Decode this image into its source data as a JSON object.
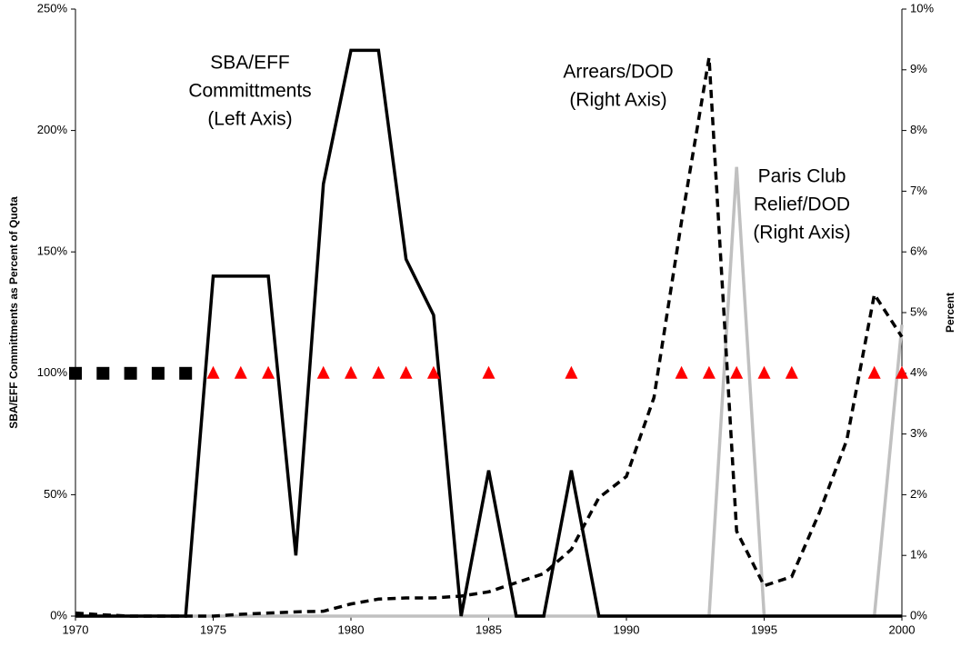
{
  "chart_data": {
    "type": "line",
    "y_label": "SBA/EFF Committments as Percent of Quota",
    "y2_label": "Percent",
    "annotations": [
      {
        "text": [
          "SBA/EFF",
          "Committments",
          "(Left Axis)"
        ]
      },
      {
        "text": [
          "Arrears/DOD",
          "(Right Axis)"
        ]
      },
      {
        "text": [
          "Paris Club",
          "Relief/DOD",
          "(Right Axis)"
        ]
      }
    ],
    "x": [
      1970,
      1971,
      1972,
      1973,
      1974,
      1975,
      1976,
      1977,
      1978,
      1979,
      1980,
      1981,
      1982,
      1983,
      1984,
      1985,
      1986,
      1987,
      1988,
      1989,
      1990,
      1991,
      1992,
      1993,
      1994,
      1995,
      1996,
      1997,
      1998,
      1999,
      2000
    ],
    "xlim": [
      1970,
      2000
    ],
    "xticks": [
      1970,
      1975,
      1980,
      1985,
      1990,
      1995,
      2000
    ],
    "ylim": [
      0,
      250
    ],
    "yticks": [
      {
        "value": 0,
        "label": "0%"
      },
      {
        "value": 50,
        "label": "50%"
      },
      {
        "value": 100,
        "label": "100%"
      },
      {
        "value": 150,
        "label": "150%"
      },
      {
        "value": 200,
        "label": "200%"
      },
      {
        "value": 250,
        "label": "250%"
      }
    ],
    "y2lim": [
      0,
      10
    ],
    "y2ticks": [
      {
        "value": 0,
        "label": "0%"
      },
      {
        "value": 1,
        "label": "1%"
      },
      {
        "value": 2,
        "label": "2%"
      },
      {
        "value": 3,
        "label": "3%"
      },
      {
        "value": 4,
        "label": "4%"
      },
      {
        "value": 5,
        "label": "5%"
      },
      {
        "value": 6,
        "label": "6%"
      },
      {
        "value": 7,
        "label": "7%"
      },
      {
        "value": 8,
        "label": "8%"
      },
      {
        "value": 9,
        "label": "9%"
      },
      {
        "value": 10,
        "label": "10%"
      }
    ],
    "series": [
      {
        "style": "solid",
        "color": "#c0c0c0",
        "axis": "y2",
        "values": [
          0,
          0,
          0,
          0,
          0,
          0,
          0,
          0,
          0,
          0,
          0,
          0,
          0,
          0,
          0,
          0,
          0,
          0,
          0,
          0,
          0,
          0,
          0,
          0,
          7.4,
          0,
          0,
          0,
          0,
          0,
          4.8
        ]
      },
      {
        "style": "solid",
        "color": "#000000",
        "values": [
          0,
          0,
          0,
          0,
          0,
          140,
          140,
          140,
          25,
          178,
          233,
          233,
          147,
          124,
          0,
          60,
          0,
          0,
          60,
          0,
          0,
          0,
          0,
          0,
          0,
          0,
          0,
          0,
          0,
          0,
          0
        ]
      },
      {
        "style": "dashed",
        "color": "#000000",
        "axis": "y2",
        "values": [
          0.05,
          0.02,
          0,
          0,
          0,
          0,
          0.03,
          0.05,
          0.07,
          0.08,
          0.2,
          0.28,
          0.3,
          0.3,
          0.33,
          0.4,
          0.55,
          0.7,
          1.1,
          1.95,
          2.3,
          3.6,
          6.5,
          9.2,
          1.4,
          0.5,
          0.65,
          1.7,
          2.9,
          5.3,
          4.6
        ]
      },
      {
        "style": "square",
        "color": "#000000",
        "values": [
          100,
          100,
          100,
          100,
          100,
          null,
          null,
          null,
          null,
          null,
          null,
          null,
          null,
          null,
          null,
          null,
          null,
          null,
          null,
          null,
          null,
          null,
          null,
          null,
          null,
          null,
          null,
          null,
          null,
          null,
          null
        ]
      },
      {
        "style": "triangle",
        "color": "#ff0000",
        "values": [
          null,
          null,
          null,
          null,
          null,
          100,
          100,
          100,
          null,
          100,
          100,
          100,
          100,
          100,
          null,
          100,
          null,
          null,
          100,
          null,
          null,
          null,
          100,
          100,
          100,
          100,
          100,
          null,
          null,
          100,
          100
        ]
      }
    ]
  }
}
